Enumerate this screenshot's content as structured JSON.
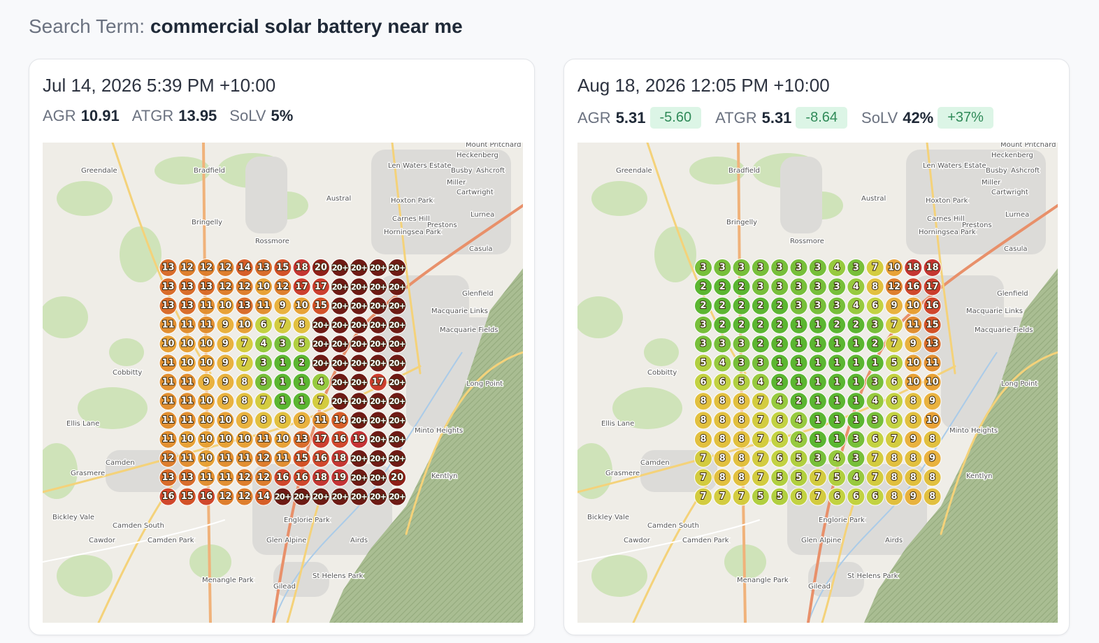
{
  "search_label": "Search Term:",
  "search_term": "commercial solar battery near me",
  "map_labels": [
    "Greendale",
    "Bradfield",
    "Austral",
    "Bringelly",
    "Rossmore",
    "Cobbitty",
    "Ellis Lane",
    "Camden",
    "Grasmere",
    "Bickley Vale",
    "Camden South",
    "Cawdor",
    "Camden Park",
    "Menangle Park",
    "Gilead",
    "St Helens Park",
    "Glen Alpine",
    "Airds",
    "Englorie Park",
    "Kentlyn",
    "Minto Heights",
    "Long Point",
    "Glenfield",
    "Casula",
    "Prestons",
    "Lurnea",
    "Heckenberg",
    "Mount Pritchard",
    "Busby",
    "Ashcroft",
    "Miller",
    "Cartwright",
    "Hoxton Park",
    "Carnes Hill",
    "Len Waters Estate",
    "Horningsea Park",
    "Macquarie Fields",
    "Macquarie Links"
  ],
  "cards": [
    {
      "title": "Jul 14, 2026 5:39 PM +10:00",
      "metrics": [
        {
          "label": "AGR",
          "value": "10.91"
        },
        {
          "label": "ATGR",
          "value": "13.95"
        },
        {
          "label": "SoLV",
          "value": "5%"
        }
      ],
      "grid": [
        [
          13,
          12,
          12,
          12,
          14,
          13,
          15,
          18,
          20,
          "20+",
          "20+",
          "20+",
          "20+"
        ],
        [
          13,
          13,
          13,
          12,
          12,
          10,
          12,
          17,
          17,
          "20+",
          "20+",
          "20+",
          "20+"
        ],
        [
          13,
          13,
          11,
          10,
          13,
          11,
          9,
          10,
          15,
          "20+",
          "20+",
          "20+",
          "20+"
        ],
        [
          11,
          11,
          11,
          9,
          10,
          6,
          7,
          8,
          "20+",
          "20+",
          "20+",
          "20+",
          "20+"
        ],
        [
          10,
          10,
          10,
          9,
          7,
          4,
          3,
          5,
          "20+",
          "20+",
          "20+",
          "20+",
          "20+"
        ],
        [
          11,
          10,
          10,
          9,
          7,
          3,
          1,
          2,
          "20+",
          "20+",
          "20+",
          "20+",
          "20+"
        ],
        [
          11,
          11,
          9,
          9,
          8,
          3,
          1,
          1,
          4,
          "20+",
          "20+",
          17,
          "20+"
        ],
        [
          11,
          11,
          10,
          9,
          8,
          7,
          1,
          1,
          7,
          "20+",
          "20+",
          "20+",
          "20+"
        ],
        [
          11,
          11,
          10,
          10,
          9,
          8,
          8,
          9,
          11,
          14,
          "20+",
          "20+",
          "20+"
        ],
        [
          11,
          10,
          10,
          10,
          10,
          11,
          10,
          13,
          17,
          16,
          19,
          "20+",
          "20+"
        ],
        [
          12,
          11,
          10,
          11,
          11,
          12,
          11,
          15,
          16,
          18,
          "20+",
          "20+",
          "20+"
        ],
        [
          13,
          13,
          11,
          11,
          12,
          12,
          16,
          16,
          18,
          19,
          "20+",
          "20+",
          20
        ],
        [
          16,
          15,
          16,
          12,
          12,
          14,
          "20+",
          "20+",
          "20+",
          "20+",
          "20+",
          "20+",
          "20+"
        ]
      ]
    },
    {
      "title": "Aug 18, 2026 12:05 PM +10:00",
      "metrics": [
        {
          "label": "AGR",
          "value": "5.31",
          "delta": "-5.60"
        },
        {
          "label": "ATGR",
          "value": "5.31",
          "delta": "-8.64"
        },
        {
          "label": "SoLV",
          "value": "42%",
          "delta": "+37%"
        }
      ],
      "grid": [
        [
          3,
          3,
          3,
          3,
          3,
          3,
          3,
          4,
          3,
          7,
          10,
          18,
          18
        ],
        [
          2,
          2,
          2,
          3,
          3,
          3,
          3,
          3,
          4,
          8,
          12,
          16,
          17
        ],
        [
          2,
          2,
          2,
          2,
          2,
          3,
          3,
          3,
          4,
          6,
          9,
          10,
          16
        ],
        [
          3,
          2,
          2,
          2,
          2,
          1,
          1,
          2,
          2,
          3,
          7,
          11,
          15
        ],
        [
          3,
          3,
          3,
          2,
          2,
          1,
          1,
          1,
          1,
          2,
          7,
          9,
          13
        ],
        [
          5,
          4,
          3,
          3,
          1,
          1,
          1,
          1,
          1,
          1,
          5,
          10,
          11
        ],
        [
          6,
          6,
          5,
          4,
          2,
          1,
          1,
          1,
          1,
          3,
          6,
          10,
          10
        ],
        [
          8,
          8,
          8,
          7,
          4,
          2,
          1,
          1,
          1,
          4,
          6,
          8,
          9
        ],
        [
          8,
          8,
          8,
          7,
          6,
          4,
          1,
          1,
          1,
          3,
          6,
          8,
          10
        ],
        [
          8,
          8,
          8,
          7,
          6,
          4,
          1,
          1,
          3,
          6,
          7,
          9,
          8
        ],
        [
          7,
          8,
          8,
          7,
          6,
          5,
          3,
          4,
          3,
          7,
          8,
          8,
          9
        ],
        [
          7,
          8,
          8,
          7,
          5,
          5,
          7,
          5,
          4,
          7,
          8,
          8,
          8
        ],
        [
          7,
          7,
          7,
          5,
          5,
          6,
          7,
          6,
          6,
          6,
          8,
          9,
          8
        ]
      ]
    }
  ]
}
